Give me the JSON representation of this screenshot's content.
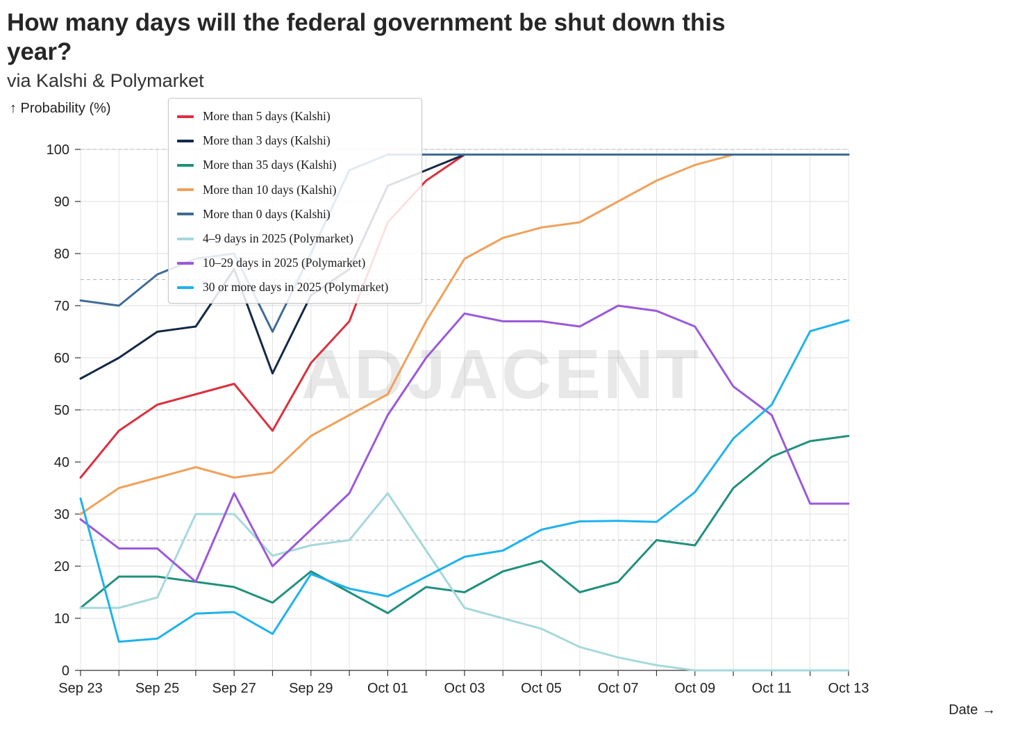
{
  "header": {
    "title": "How many days will the federal government be shut down this year?",
    "subtitle": "via Kalshi & Polymarket"
  },
  "watermark": "ADJACENT",
  "chart_data": {
    "type": "line",
    "title": "How many days will the federal government be shut down this year?",
    "subtitle": "via Kalshi & Polymarket",
    "ylabel": "↑ Probability (%)",
    "xlabel": "Date →",
    "ylim": [
      0,
      100
    ],
    "yticks": [
      0,
      10,
      20,
      30,
      40,
      50,
      60,
      70,
      80,
      90,
      100
    ],
    "x": [
      "Sep 23",
      "Sep 24",
      "Sep 25",
      "Sep 26",
      "Sep 27",
      "Sep 28",
      "Sep 29",
      "Sep 30",
      "Oct 01",
      "Oct 02",
      "Oct 03",
      "Oct 04",
      "Oct 05",
      "Oct 06",
      "Oct 07",
      "Oct 08",
      "Oct 09",
      "Oct 10",
      "Oct 11",
      "Oct 12",
      "Oct 13"
    ],
    "xtick_labels": [
      "Sep 23",
      "Sep 25",
      "Sep 27",
      "Sep 29",
      "Oct 01",
      "Oct 03",
      "Oct 05",
      "Oct 07",
      "Oct 09",
      "Oct 11",
      "Oct 13"
    ],
    "grid": true,
    "legend_position": "top-left",
    "series": [
      {
        "name": "More than 5 days (Kalshi)",
        "color": "#dc2f3d",
        "values": [
          37,
          46,
          51,
          53,
          55,
          46,
          59,
          67,
          86,
          94,
          99,
          99,
          99,
          99,
          99,
          99,
          99,
          99,
          99,
          99,
          99
        ]
      },
      {
        "name": "More than 3 days (Kalshi)",
        "color": "#142947",
        "values": [
          56,
          60,
          65,
          66,
          77,
          57,
          72,
          77,
          93,
          96,
          99,
          99,
          99,
          99,
          99,
          99,
          99,
          99,
          99,
          99,
          99
        ]
      },
      {
        "name": "More than 35 days (Kalshi)",
        "color": "#20907e",
        "values": [
          12,
          18,
          18,
          17,
          16,
          13,
          19,
          15,
          11,
          16,
          15,
          19,
          21,
          15,
          17,
          25,
          24,
          35,
          41,
          44,
          45
        ]
      },
      {
        "name": "More than 10 days (Kalshi)",
        "color": "#f0a15a",
        "values": [
          30,
          35,
          37,
          39,
          37,
          38,
          45,
          49,
          53,
          67,
          79,
          83,
          85,
          86,
          90,
          94,
          97,
          99,
          99,
          99,
          99
        ]
      },
      {
        "name": "More than 0 days (Kalshi)",
        "color": "#3e6b95",
        "values": [
          71,
          70,
          76,
          79,
          80,
          65,
          80,
          96,
          99,
          99,
          99,
          99,
          99,
          99,
          99,
          99,
          99,
          99,
          99,
          99,
          99
        ]
      },
      {
        "name": "4–9 days in 2025 (Polymarket)",
        "color": "#a6d8dd",
        "values": [
          12,
          12,
          14,
          30,
          30,
          22,
          24,
          25,
          34,
          23,
          12,
          10,
          8,
          4.5,
          2.5,
          1,
          0,
          0,
          0,
          0,
          0
        ]
      },
      {
        "name": "10–29 days in 2025 (Polymarket)",
        "color": "#9b59d9",
        "values": [
          29,
          23.4,
          23.4,
          17,
          34,
          20,
          27,
          34,
          49,
          60,
          68.5,
          67,
          67,
          66,
          70,
          69,
          66,
          54.5,
          49,
          32,
          32
        ]
      },
      {
        "name": "30 or more days in 2025 (Polymarket)",
        "color": "#1fb2ec",
        "values": [
          33,
          5.5,
          6.1,
          10.9,
          11.2,
          7,
          18.5,
          15.7,
          14.2,
          18,
          21.8,
          23,
          27,
          28.6,
          28.7,
          28.5,
          34.2,
          44.5,
          51,
          65.1,
          67.2
        ]
      }
    ]
  }
}
